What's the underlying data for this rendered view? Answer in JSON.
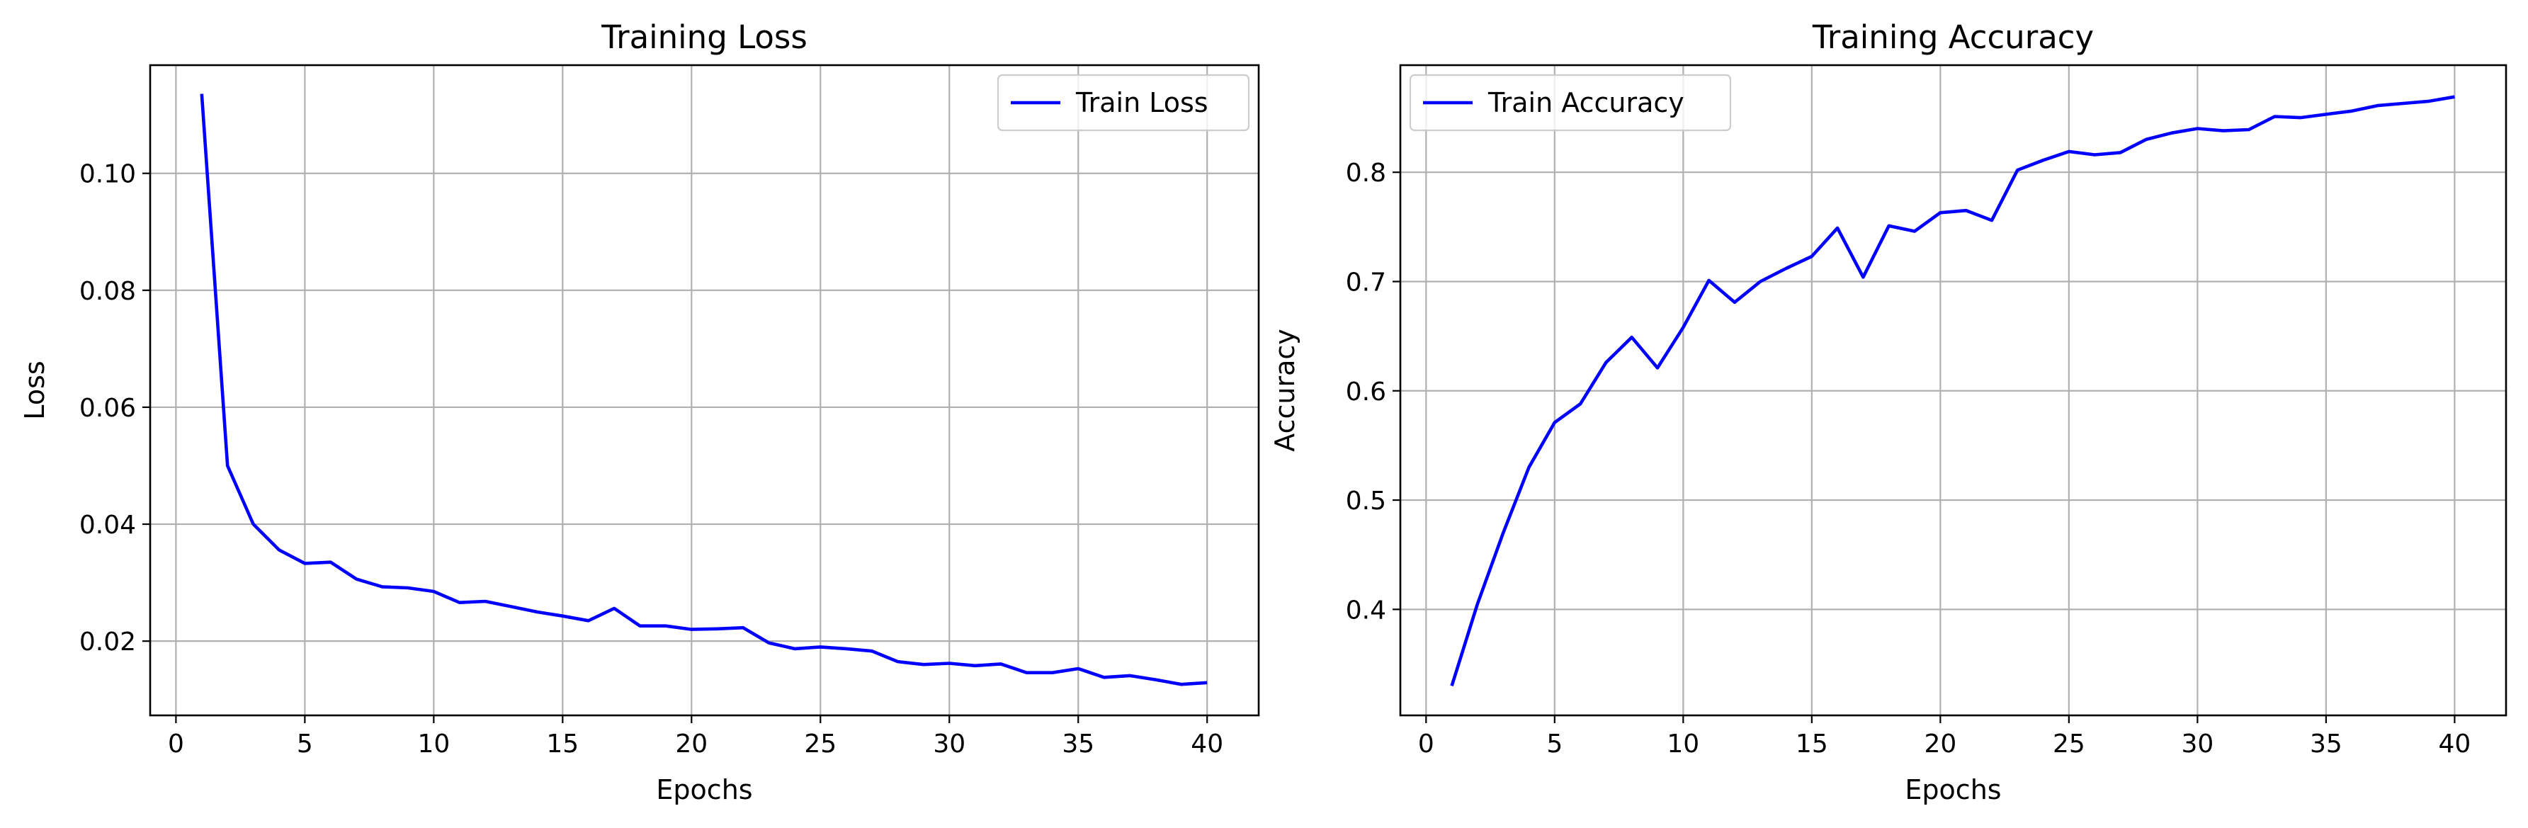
{
  "chart_data": [
    {
      "type": "line",
      "title": "Training Loss",
      "xlabel": "Epochs",
      "ylabel": "Loss",
      "xlim": [
        -1,
        42
      ],
      "ylim": [
        0.0073,
        0.1185
      ],
      "xticks": [
        0,
        5,
        10,
        15,
        20,
        25,
        30,
        35,
        40
      ],
      "yticks": [
        0.02,
        0.04,
        0.06,
        0.08,
        0.1
      ],
      "ytick_labels": [
        "0.02",
        "0.04",
        "0.06",
        "0.08",
        "0.10"
      ],
      "grid": true,
      "legend_position": "top-right",
      "x": [
        1,
        2,
        3,
        4,
        5,
        6,
        7,
        8,
        9,
        10,
        11,
        12,
        13,
        14,
        15,
        16,
        17,
        18,
        19,
        20,
        21,
        22,
        23,
        24,
        25,
        26,
        27,
        28,
        29,
        30,
        31,
        32,
        33,
        34,
        35,
        36,
        37,
        38,
        39,
        40
      ],
      "series": [
        {
          "name": "Train Loss",
          "color": "#0000ff",
          "values": [
            0.1136,
            0.05,
            0.04,
            0.0356,
            0.0333,
            0.0335,
            0.0306,
            0.0293,
            0.0291,
            0.0285,
            0.0266,
            0.0268,
            0.0259,
            0.025,
            0.0243,
            0.0235,
            0.0256,
            0.0226,
            0.0226,
            0.022,
            0.0221,
            0.0223,
            0.0197,
            0.0187,
            0.019,
            0.0187,
            0.0183,
            0.0165,
            0.016,
            0.0162,
            0.0158,
            0.0161,
            0.0146,
            0.0146,
            0.0153,
            0.0138,
            0.0141,
            0.0134,
            0.0126,
            0.0129
          ]
        }
      ]
    },
    {
      "type": "line",
      "title": "Training Accuracy",
      "xlabel": "Epochs",
      "ylabel": "Accuracy",
      "xlim": [
        -1,
        42
      ],
      "ylim": [
        0.303,
        0.898
      ],
      "xticks": [
        0,
        5,
        10,
        15,
        20,
        25,
        30,
        35,
        40
      ],
      "yticks": [
        0.4,
        0.5,
        0.6,
        0.7,
        0.8
      ],
      "ytick_labels": [
        "0.4",
        "0.5",
        "0.6",
        "0.7",
        "0.8"
      ],
      "grid": true,
      "legend_position": "top-left",
      "x": [
        1,
        2,
        3,
        4,
        5,
        6,
        7,
        8,
        9,
        10,
        11,
        12,
        13,
        14,
        15,
        16,
        17,
        18,
        19,
        20,
        21,
        22,
        23,
        24,
        25,
        26,
        27,
        28,
        29,
        30,
        31,
        32,
        33,
        34,
        35,
        36,
        37,
        38,
        39,
        40
      ],
      "series": [
        {
          "name": "Train Accuracy",
          "color": "#0000ff",
          "values": [
            0.33,
            0.405,
            0.47,
            0.53,
            0.571,
            0.588,
            0.626,
            0.649,
            0.621,
            0.658,
            0.701,
            0.681,
            0.7,
            0.712,
            0.723,
            0.749,
            0.704,
            0.751,
            0.746,
            0.763,
            0.765,
            0.756,
            0.802,
            0.811,
            0.819,
            0.816,
            0.818,
            0.83,
            0.836,
            0.84,
            0.838,
            0.839,
            0.851,
            0.85,
            0.853,
            0.856,
            0.861,
            0.863,
            0.865,
            0.869
          ]
        }
      ]
    }
  ]
}
